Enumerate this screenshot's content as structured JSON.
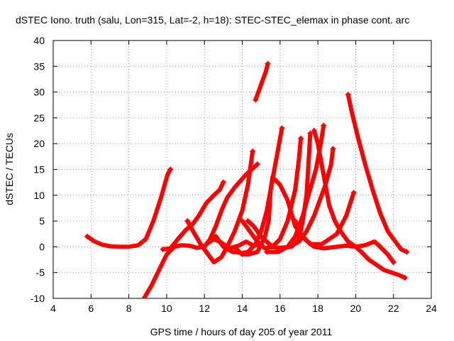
{
  "chart_data": {
    "type": "scatter",
    "title": "dSTEC Iono. truth (salu, Lon=315, Lat=-2, h=18): STEC-STEC_elemax in phase cont. arc",
    "xlabel": "GPS time / hours of day 205 of year 2011",
    "ylabel": "dSTEC  / TECUs",
    "xlim": [
      4,
      24
    ],
    "ylim": [
      -10,
      40
    ],
    "xticks": [
      4,
      6,
      8,
      10,
      12,
      14,
      16,
      18,
      20,
      22,
      24
    ],
    "yticks": [
      -10,
      -5,
      0,
      5,
      10,
      15,
      20,
      25,
      30,
      35,
      40
    ],
    "grid": true,
    "marker": "+",
    "color": "#ff0000",
    "series": [
      {
        "points": [
          [
            5.8,
            2
          ],
          [
            6.2,
            1
          ],
          [
            6.6,
            0.4
          ],
          [
            7.0,
            0.1
          ],
          [
            7.5,
            0
          ],
          [
            8.0,
            0
          ],
          [
            8.5,
            0.3
          ],
          [
            8.9,
            1.5
          ],
          [
            9.3,
            5
          ],
          [
            9.7,
            9.5
          ],
          [
            10.05,
            14
          ],
          [
            10.2,
            15
          ]
        ]
      },
      {
        "points": [
          [
            8.8,
            -10
          ],
          [
            9.2,
            -7.5
          ],
          [
            9.6,
            -4.5
          ],
          [
            10.0,
            -1.5
          ],
          [
            10.4,
            0
          ],
          [
            10.8,
            0.3
          ],
          [
            11.2,
            0.2
          ],
          [
            11.6,
            -0.2
          ],
          [
            12.0,
            0
          ],
          [
            12.3,
            1.5
          ],
          [
            12.6,
            4
          ],
          [
            12.9,
            7
          ],
          [
            13.2,
            9.5
          ],
          [
            13.6,
            11.5
          ],
          [
            14.2,
            14
          ],
          [
            14.8,
            16
          ]
        ]
      },
      {
        "points": [
          [
            9.8,
            -0.5
          ],
          [
            10.2,
            -0.3
          ],
          [
            10.6,
            1.5
          ],
          [
            11.0,
            3.2
          ],
          [
            11.4,
            4.5
          ],
          [
            11.7,
            6
          ],
          [
            12.1,
            8.5
          ],
          [
            12.5,
            10
          ],
          [
            12.8,
            11
          ],
          [
            13.0,
            12.5
          ]
        ]
      },
      {
        "points": [
          [
            11.1,
            5
          ],
          [
            11.4,
            3
          ],
          [
            11.8,
            0.5
          ],
          [
            12.2,
            -1.5
          ],
          [
            12.5,
            -3
          ],
          [
            12.9,
            -2
          ],
          [
            13.2,
            0
          ],
          [
            13.6,
            3
          ],
          [
            14.0,
            7
          ],
          [
            14.3,
            12
          ],
          [
            14.55,
            18.5
          ]
        ]
      },
      {
        "points": [
          [
            12.1,
            0.5
          ],
          [
            12.5,
            1.5
          ],
          [
            12.9,
            0.8
          ],
          [
            13.3,
            -0.3
          ],
          [
            13.8,
            0.2
          ],
          [
            14.2,
            1
          ],
          [
            14.6,
            0.2
          ],
          [
            15.0,
            0.5
          ]
        ]
      },
      {
        "points": [
          [
            12.6,
            2
          ],
          [
            13.0,
            0
          ],
          [
            13.5,
            -1
          ],
          [
            14.0,
            -1.2
          ],
          [
            14.3,
            -1
          ],
          [
            14.7,
            0.5
          ],
          [
            15.0,
            3
          ],
          [
            15.3,
            7
          ],
          [
            15.6,
            13
          ],
          [
            15.9,
            19
          ],
          [
            16.1,
            23
          ]
        ]
      },
      {
        "points": [
          [
            14.0,
            5
          ],
          [
            14.4,
            3
          ],
          [
            14.8,
            1
          ],
          [
            15.2,
            -0.3
          ],
          [
            15.6,
            0
          ],
          [
            16.0,
            1.5
          ],
          [
            16.4,
            5
          ],
          [
            16.8,
            11
          ],
          [
            17.0,
            17
          ],
          [
            17.1,
            21
          ]
        ]
      },
      {
        "points": [
          [
            13.7,
            -0.5
          ],
          [
            14.0,
            -1.5
          ],
          [
            14.3,
            -1.5
          ],
          [
            14.8,
            -1
          ],
          [
            15.2,
            2
          ],
          [
            15.4,
            5
          ],
          [
            15.5,
            11
          ],
          [
            15.6,
            13.5
          ],
          [
            16.0,
            12
          ],
          [
            16.4,
            9
          ],
          [
            16.8,
            4
          ],
          [
            17.2,
            2
          ],
          [
            17.6,
            0.5
          ],
          [
            18.2,
            0.5
          ],
          [
            19.0,
            2.5
          ],
          [
            19.5,
            6
          ],
          [
            19.9,
            10.5
          ]
        ]
      },
      {
        "points": [
          [
            14.7,
            28.5
          ],
          [
            14.9,
            30.5
          ],
          [
            15.1,
            32.5
          ],
          [
            15.25,
            34
          ],
          [
            15.35,
            35.5
          ]
        ]
      },
      {
        "points": [
          [
            14.3,
            5
          ],
          [
            14.6,
            4
          ],
          [
            15.0,
            2
          ],
          [
            15.5,
            0.3
          ],
          [
            15.9,
            -0.3
          ],
          [
            16.5,
            0
          ],
          [
            17.0,
            1
          ],
          [
            17.4,
            3
          ],
          [
            17.8,
            6
          ],
          [
            18.1,
            9
          ],
          [
            18.4,
            12
          ],
          [
            18.7,
            16
          ],
          [
            18.8,
            19
          ]
        ]
      },
      {
        "points": [
          [
            15.3,
            -1
          ],
          [
            15.9,
            -1
          ],
          [
            16.4,
            0
          ],
          [
            16.8,
            2
          ],
          [
            17.2,
            6
          ],
          [
            17.5,
            10
          ],
          [
            17.9,
            15
          ],
          [
            18.1,
            19
          ],
          [
            18.2,
            21
          ],
          [
            18.3,
            23.5
          ]
        ]
      },
      {
        "points": [
          [
            15.4,
            0
          ],
          [
            16.0,
            -0.2
          ],
          [
            16.6,
            0
          ],
          [
            17.0,
            1.5
          ],
          [
            17.2,
            5
          ],
          [
            17.4,
            10
          ],
          [
            17.5,
            16
          ],
          [
            17.6,
            22
          ]
        ]
      },
      {
        "points": [
          [
            16.8,
            5
          ],
          [
            17.0,
            3
          ],
          [
            17.3,
            1.5
          ],
          [
            17.8,
            0
          ],
          [
            18.3,
            -0.3
          ],
          [
            19.0,
            0
          ],
          [
            19.5,
            0.2
          ],
          [
            20.0,
            0
          ],
          [
            20.5,
            0.3
          ],
          [
            21.0,
            1
          ],
          [
            21.3,
            0
          ],
          [
            21.7,
            -1.5
          ],
          [
            22.0,
            -3
          ]
        ]
      },
      {
        "points": [
          [
            17.8,
            22.5
          ],
          [
            18.0,
            20
          ],
          [
            18.2,
            16
          ],
          [
            18.4,
            12
          ],
          [
            18.6,
            8
          ],
          [
            18.9,
            5
          ],
          [
            19.2,
            3
          ],
          [
            19.6,
            1
          ],
          [
            20.0,
            0
          ],
          [
            20.3,
            -1
          ],
          [
            20.7,
            -2.5
          ],
          [
            21.1,
            -3.5
          ],
          [
            21.5,
            -4.5
          ],
          [
            21.9,
            -5
          ],
          [
            22.3,
            -5.5
          ],
          [
            22.6,
            -6
          ]
        ]
      },
      {
        "points": [
          [
            19.6,
            29.5
          ],
          [
            19.8,
            26
          ],
          [
            20.1,
            21.5
          ],
          [
            20.5,
            16
          ],
          [
            20.9,
            11
          ],
          [
            21.3,
            6.5
          ],
          [
            21.7,
            3
          ],
          [
            22.1,
            1
          ],
          [
            22.4,
            -0.5
          ],
          [
            22.7,
            -1
          ]
        ]
      }
    ]
  }
}
